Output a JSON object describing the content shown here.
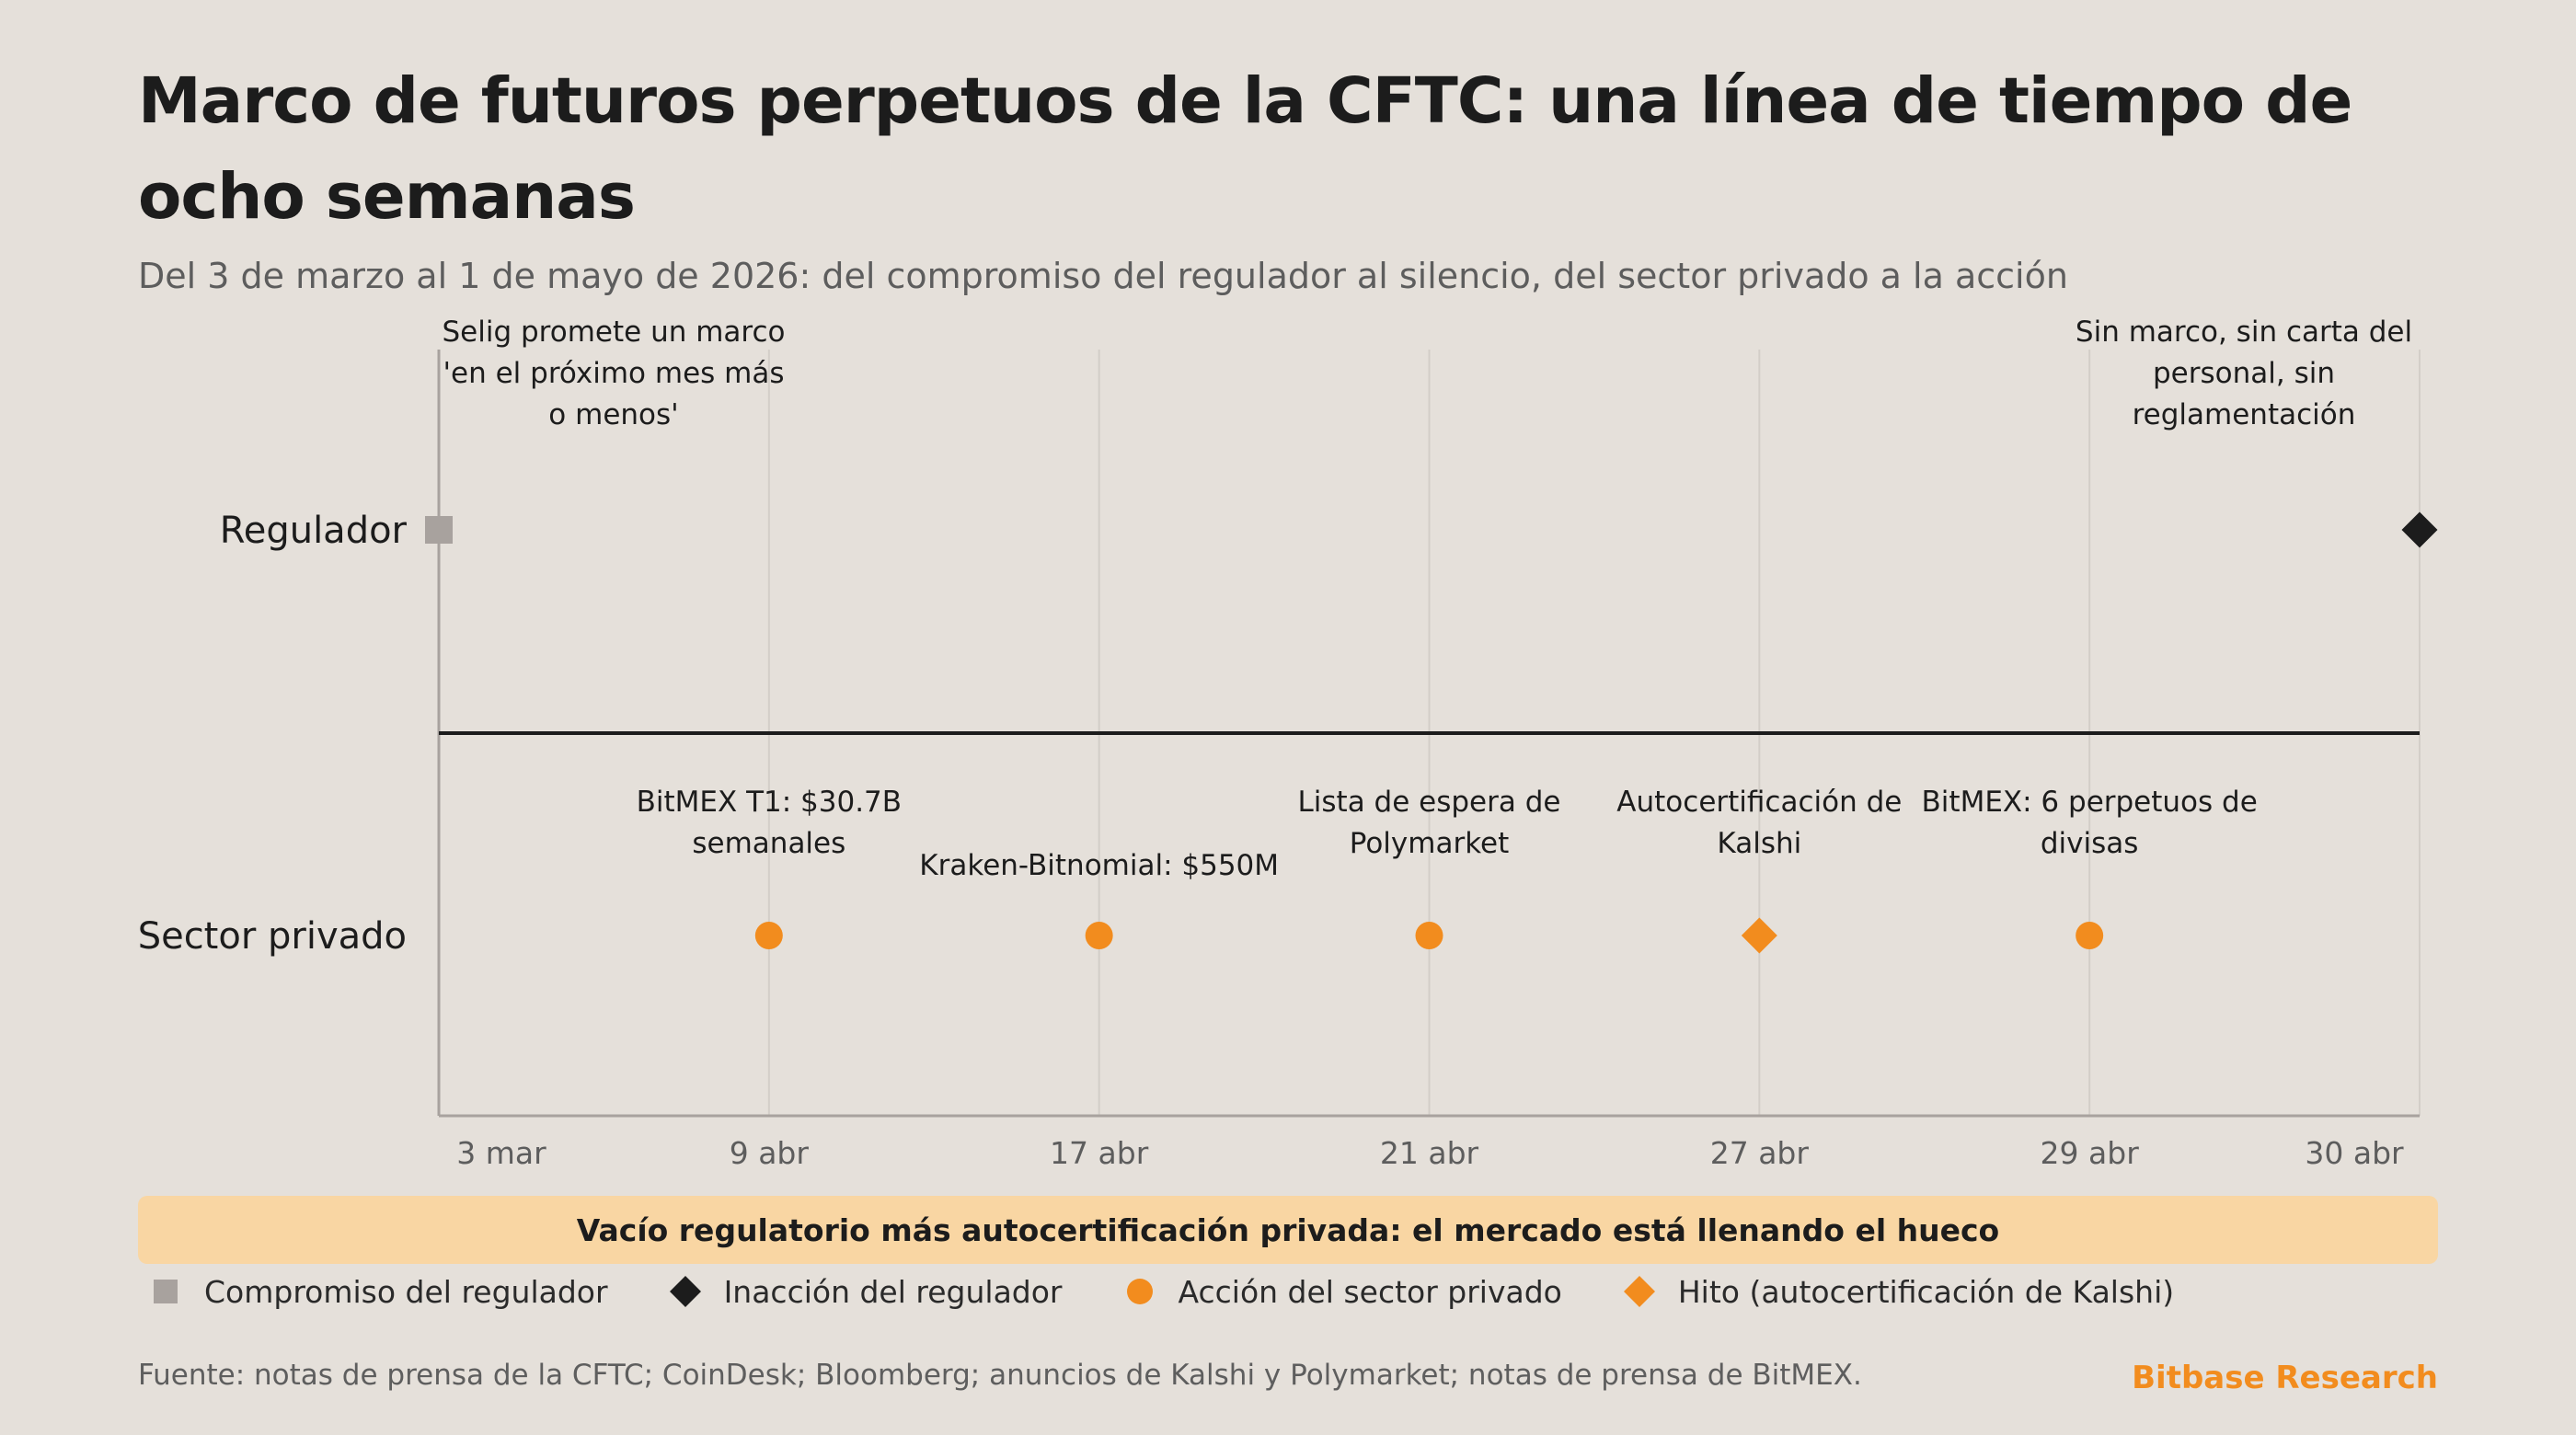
{
  "title": "Marco de futuros perpetuos de la CFTC: una línea de tiempo de ocho semanas",
  "subtitle": "Del 3 de marzo al 1 de mayo de 2026: del compromiso del regulador al silencio, del sector privado a la acción",
  "banner": "Vacío regulatorio más autocertificación privada: el mercado está llenando el hueco",
  "source": "Fuente: notas de prensa de la CFTC; CoinDesk; Bloomberg; anuncios de Kalshi y Polymarket; notas de prensa de BitMEX.",
  "brand": "Bitbase Research",
  "colors": {
    "background": "#e5e0da",
    "commitment": "#a8a29e",
    "inaction": "#1c1c1c",
    "private": "#f28c1e",
    "banner": "#f9d6a3",
    "brand": "#f28c1e",
    "grid": "#d3cec8",
    "axis": "#a8a29e"
  },
  "legend": [
    {
      "label": "Compromiso del regulador",
      "marker": "square",
      "color": "#a8a29e"
    },
    {
      "label": "Inacción del regulador",
      "marker": "diamond",
      "color": "#1c1c1c"
    },
    {
      "label": "Acción del sector privado",
      "marker": "circle",
      "color": "#f28c1e"
    },
    {
      "label": "Hito (autocertificación de Kalshi)",
      "marker": "diamond",
      "color": "#f28c1e"
    }
  ],
  "chart_data": {
    "type": "scatter",
    "title": "Marco de futuros perpetuos de la CFTC: una línea de tiempo de ocho semanas",
    "x_ticks": [
      "3 mar",
      "9 abr",
      "17 abr",
      "21 abr",
      "27 abr",
      "29 abr",
      "30 abr"
    ],
    "lanes": [
      "Regulador",
      "Sector privado"
    ],
    "grid": true,
    "legend_position": "bottom",
    "events": [
      {
        "lane": "Regulador",
        "tick": "3 mar",
        "label": [
          "Selig promete un marco",
          "'en el próximo mes más",
          "o menos'"
        ],
        "marker": "square",
        "series": "Compromiso del regulador"
      },
      {
        "lane": "Regulador",
        "tick": "30 abr",
        "label": [
          "Sin marco, sin carta del",
          "personal, sin",
          "reglamentación"
        ],
        "marker": "diamond",
        "series": "Inacción del regulador"
      },
      {
        "lane": "Sector privado",
        "tick": "9 abr",
        "label": [
          "BitMEX T1: $30.7B",
          "semanales"
        ],
        "marker": "circle",
        "series": "Acción del sector privado"
      },
      {
        "lane": "Sector privado",
        "tick": "17 abr",
        "label": [
          "Kraken-Bitnomial: $550M"
        ],
        "marker": "circle",
        "series": "Acción del sector privado"
      },
      {
        "lane": "Sector privado",
        "tick": "21 abr",
        "label": [
          "Lista de espera de",
          "Polymarket"
        ],
        "marker": "circle",
        "series": "Acción del sector privado"
      },
      {
        "lane": "Sector privado",
        "tick": "27 abr",
        "label": [
          "Autocertificación de",
          "Kalshi"
        ],
        "marker": "diamond",
        "series": "Hito (autocertificación de Kalshi)"
      },
      {
        "lane": "Sector privado",
        "tick": "29 abr",
        "label": [
          "BitMEX: 6 perpetuos de",
          "divisas"
        ],
        "marker": "circle",
        "series": "Acción del sector privado"
      }
    ]
  }
}
